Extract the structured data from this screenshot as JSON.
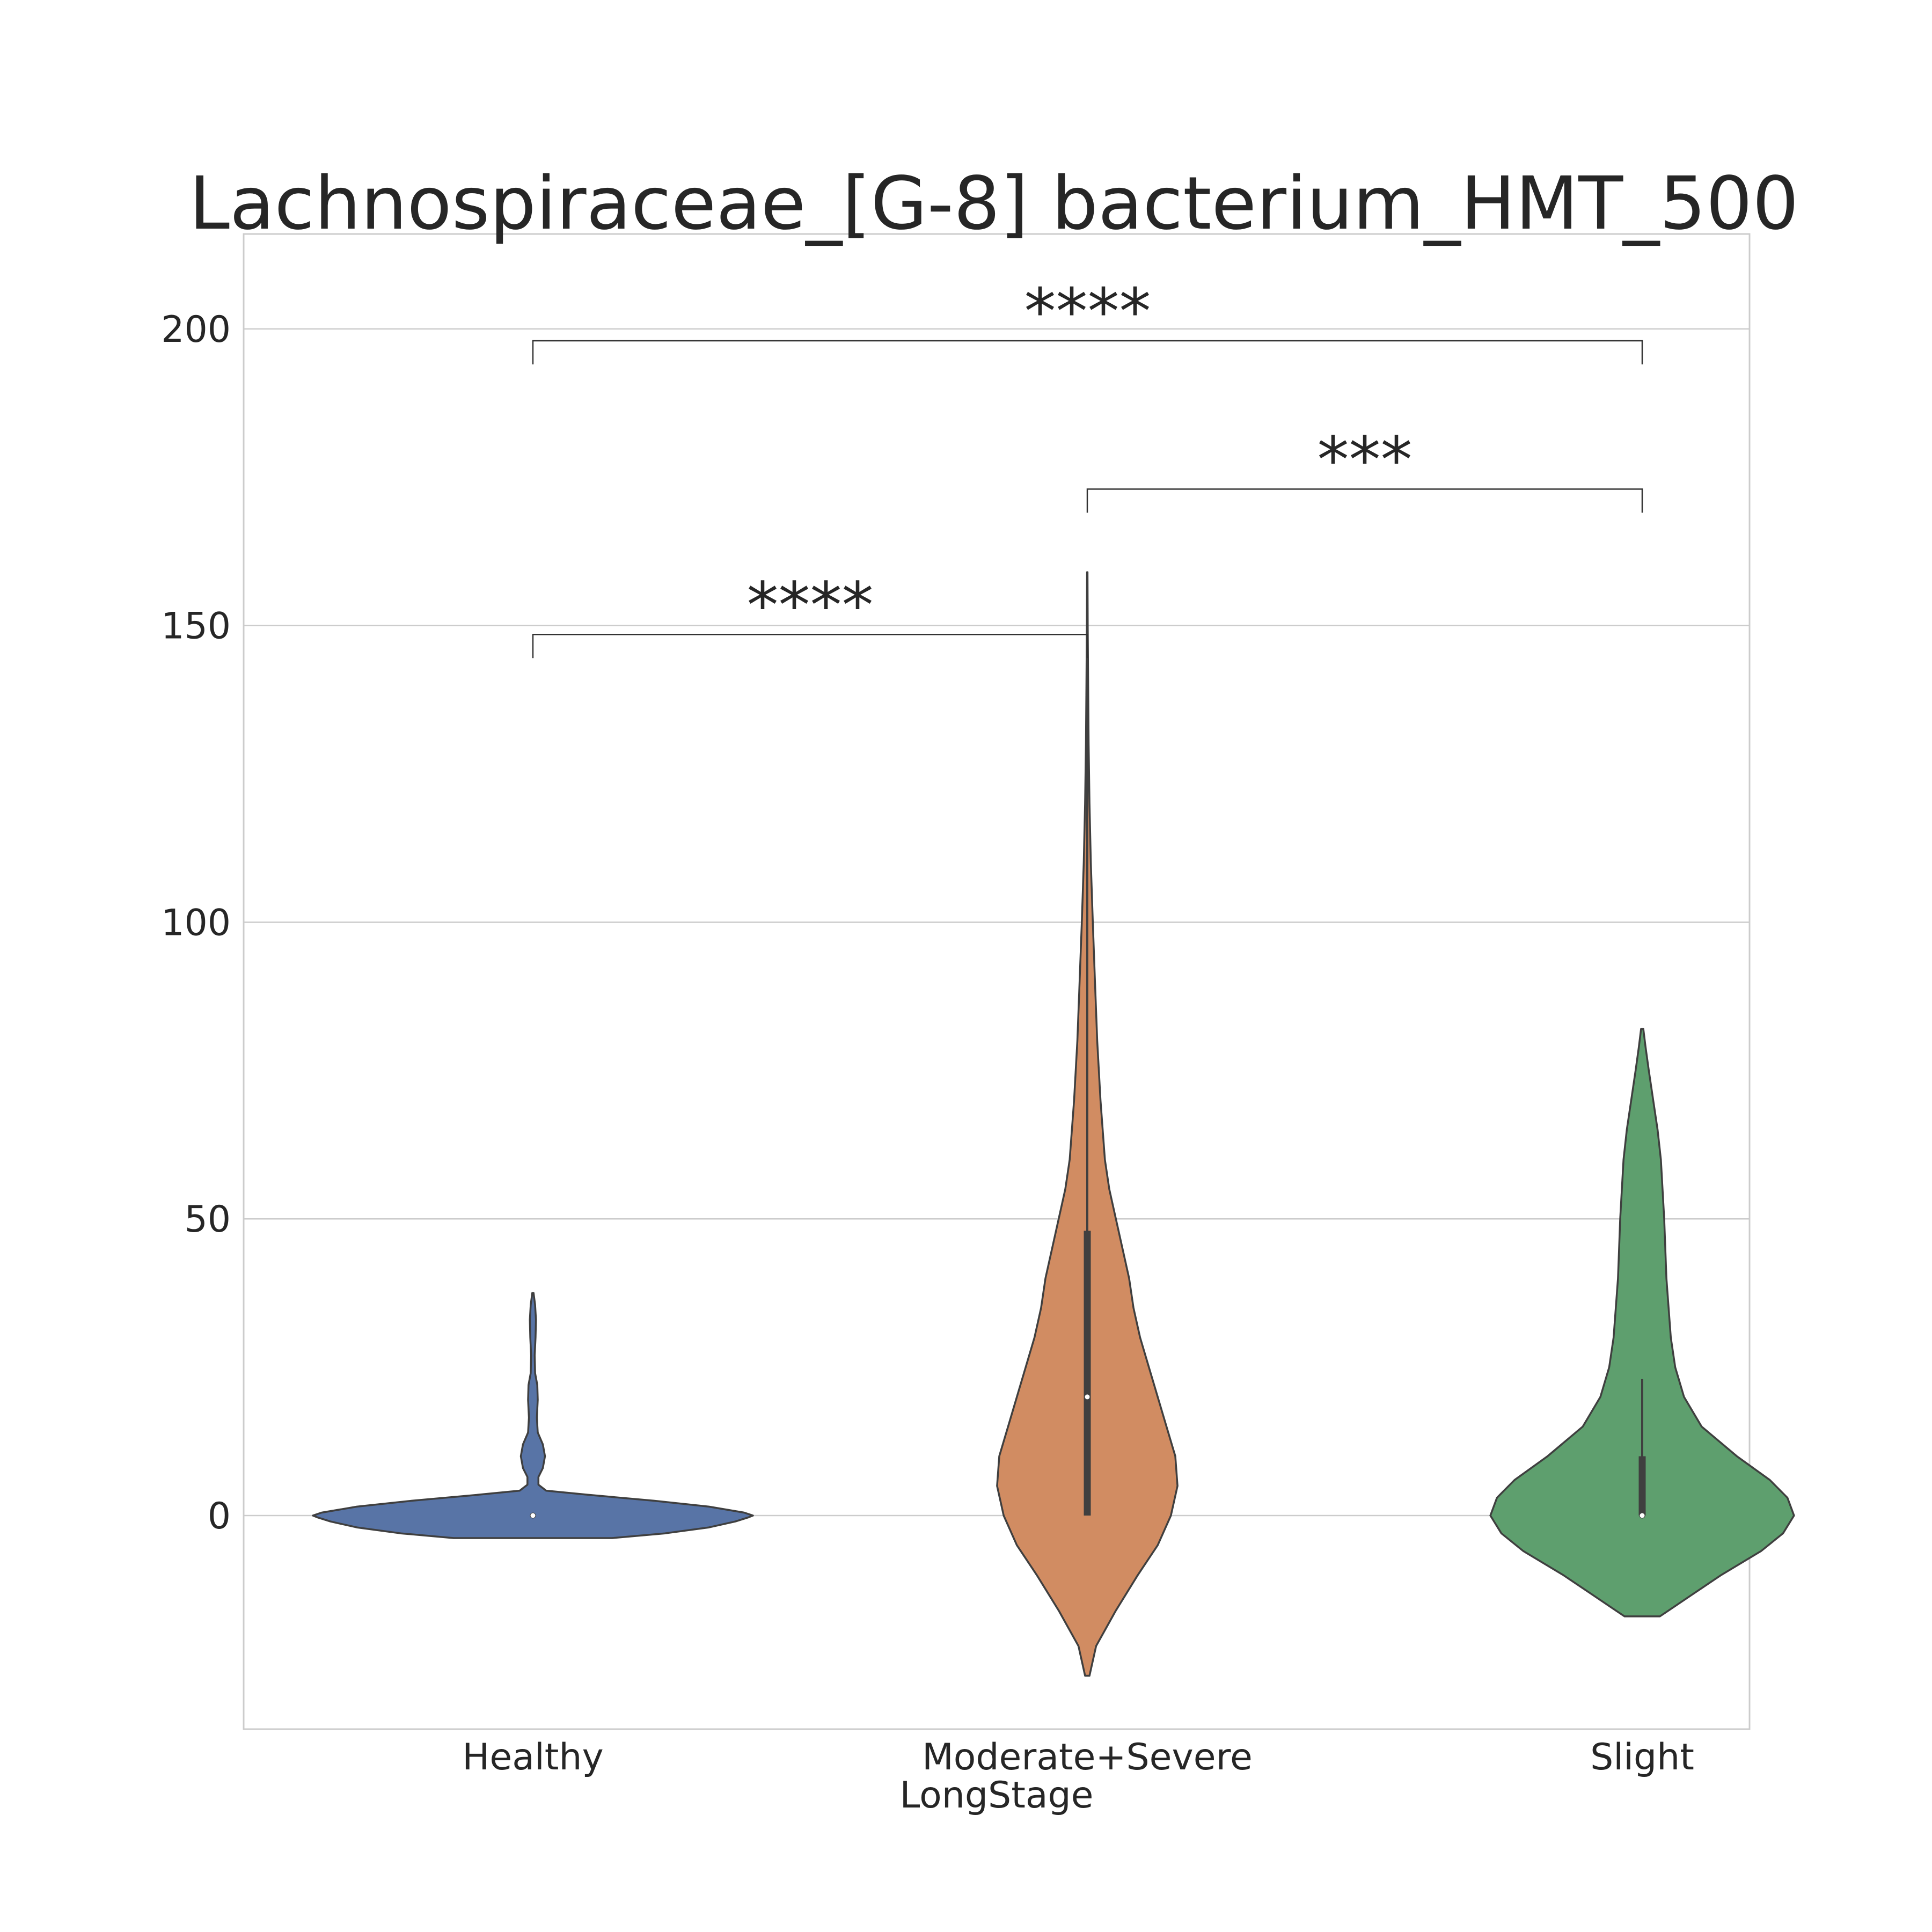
{
  "chart_data": {
    "type": "violin",
    "title": "Lachnospiraceae_[G-8] bacterium_HMT_500",
    "xlabel": "LongStage",
    "ylabel": "",
    "categories": [
      "Healthy",
      "Moderate+Severe",
      "Slight"
    ],
    "ylim": [
      -36,
      216
    ],
    "yticks": [
      0,
      50,
      100,
      150,
      200
    ],
    "grid": true,
    "colors": [
      "#5874a6",
      "#d18c62",
      "#5e9f6e"
    ],
    "violins": [
      {
        "category": "Healthy",
        "color": "#5874a6",
        "median": 0,
        "q1": 0,
        "q3": 0,
        "whisker_low": 0,
        "whisker_high": 0,
        "profile": [
          [
            -3.8,
            0.36
          ],
          [
            -3.0,
            0.6
          ],
          [
            -2.0,
            0.8
          ],
          [
            -1.0,
            0.92
          ],
          [
            -0.3,
            0.98
          ],
          [
            0,
            1.0
          ],
          [
            0.5,
            0.96
          ],
          [
            1.5,
            0.8
          ],
          [
            2.5,
            0.55
          ],
          [
            3.5,
            0.25
          ],
          [
            4.2,
            0.06
          ],
          [
            5.2,
            0.025
          ],
          [
            6.5,
            0.025
          ],
          [
            8.0,
            0.045
          ],
          [
            10.0,
            0.055
          ],
          [
            12.0,
            0.045
          ],
          [
            14.0,
            0.022
          ],
          [
            16.5,
            0.018
          ],
          [
            19.5,
            0.022
          ],
          [
            22.0,
            0.02
          ],
          [
            24.0,
            0.01
          ],
          [
            27.0,
            0.008
          ],
          [
            30.0,
            0.012
          ],
          [
            33.0,
            0.014
          ],
          [
            35.5,
            0.01
          ],
          [
            37.5,
            0.003
          ]
        ]
      },
      {
        "category": "Moderate+Severe",
        "color": "#d18c62",
        "median": 20,
        "q1": 0,
        "q3": 48,
        "whisker_low": 0,
        "whisker_high": 159,
        "profile": [
          [
            -27,
            0.01
          ],
          [
            -22,
            0.04
          ],
          [
            -16,
            0.13
          ],
          [
            -10,
            0.23
          ],
          [
            -5,
            0.32
          ],
          [
            0,
            0.38
          ],
          [
            5,
            0.41
          ],
          [
            10,
            0.4
          ],
          [
            15,
            0.36
          ],
          [
            20,
            0.32
          ],
          [
            25,
            0.28
          ],
          [
            30,
            0.24
          ],
          [
            35,
            0.21
          ],
          [
            40,
            0.19
          ],
          [
            45,
            0.16
          ],
          [
            50,
            0.13
          ],
          [
            55,
            0.1
          ],
          [
            60,
            0.08
          ],
          [
            70,
            0.06
          ],
          [
            80,
            0.045
          ],
          [
            90,
            0.035
          ],
          [
            100,
            0.025
          ],
          [
            110,
            0.016
          ],
          [
            120,
            0.01
          ],
          [
            130,
            0.006
          ],
          [
            140,
            0.004
          ],
          [
            150,
            0.002
          ],
          [
            159,
            0.001
          ]
        ]
      },
      {
        "category": "Slight",
        "color": "#5e9f6e",
        "median": 0,
        "q1": 0,
        "q3": 10,
        "whisker_low": 0,
        "whisker_high": 23,
        "profile": [
          [
            -17,
            0.08
          ],
          [
            -16,
            0.12
          ],
          [
            -13,
            0.24
          ],
          [
            -10,
            0.36
          ],
          [
            -6,
            0.54
          ],
          [
            -3,
            0.64
          ],
          [
            0,
            0.69
          ],
          [
            3,
            0.66
          ],
          [
            6,
            0.58
          ],
          [
            10,
            0.43
          ],
          [
            15,
            0.27
          ],
          [
            20,
            0.19
          ],
          [
            25,
            0.15
          ],
          [
            30,
            0.13
          ],
          [
            35,
            0.12
          ],
          [
            40,
            0.11
          ],
          [
            50,
            0.1
          ],
          [
            60,
            0.085
          ],
          [
            65,
            0.07
          ],
          [
            70,
            0.05
          ],
          [
            75,
            0.03
          ],
          [
            79,
            0.015
          ],
          [
            82,
            0.005
          ]
        ]
      }
    ],
    "annotations": [
      {
        "from": "Healthy",
        "to": "Moderate+Severe",
        "y": 148.5,
        "label": "****"
      },
      {
        "from": "Moderate+Severe",
        "to": "Slight",
        "y": 173,
        "label": "***"
      },
      {
        "from": "Healthy",
        "to": "Slight",
        "y": 198,
        "label": "****"
      }
    ]
  }
}
